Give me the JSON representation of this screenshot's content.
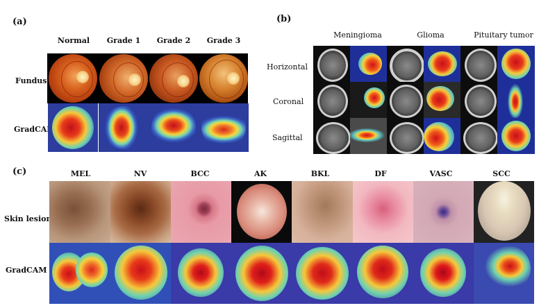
{
  "panel_a": {
    "label": "(a)",
    "columns": [
      "Normal",
      "Grade 1",
      "Grade 2",
      "Grade 3"
    ],
    "rows": [
      "Fundus",
      "GradCAM"
    ]
  },
  "panel_b": {
    "label": "(b)",
    "columns": [
      "Meningioma",
      "Glioma",
      "Pituitary tumor"
    ],
    "rows": [
      "Horizontal",
      "Coronal",
      "Sagittal"
    ]
  },
  "panel_c": {
    "label": "(c)",
    "columns": [
      "MEL",
      "NV",
      "BCC",
      "AK",
      "BKL",
      "DF",
      "VASC",
      "SCC"
    ],
    "rows": [
      "Skin lesion",
      "GradCAM"
    ]
  },
  "colors": {
    "cam_cold": "#2a3aa8",
    "cam_warm": "#f3e23a",
    "cam_hot": "#d81f1f"
  }
}
